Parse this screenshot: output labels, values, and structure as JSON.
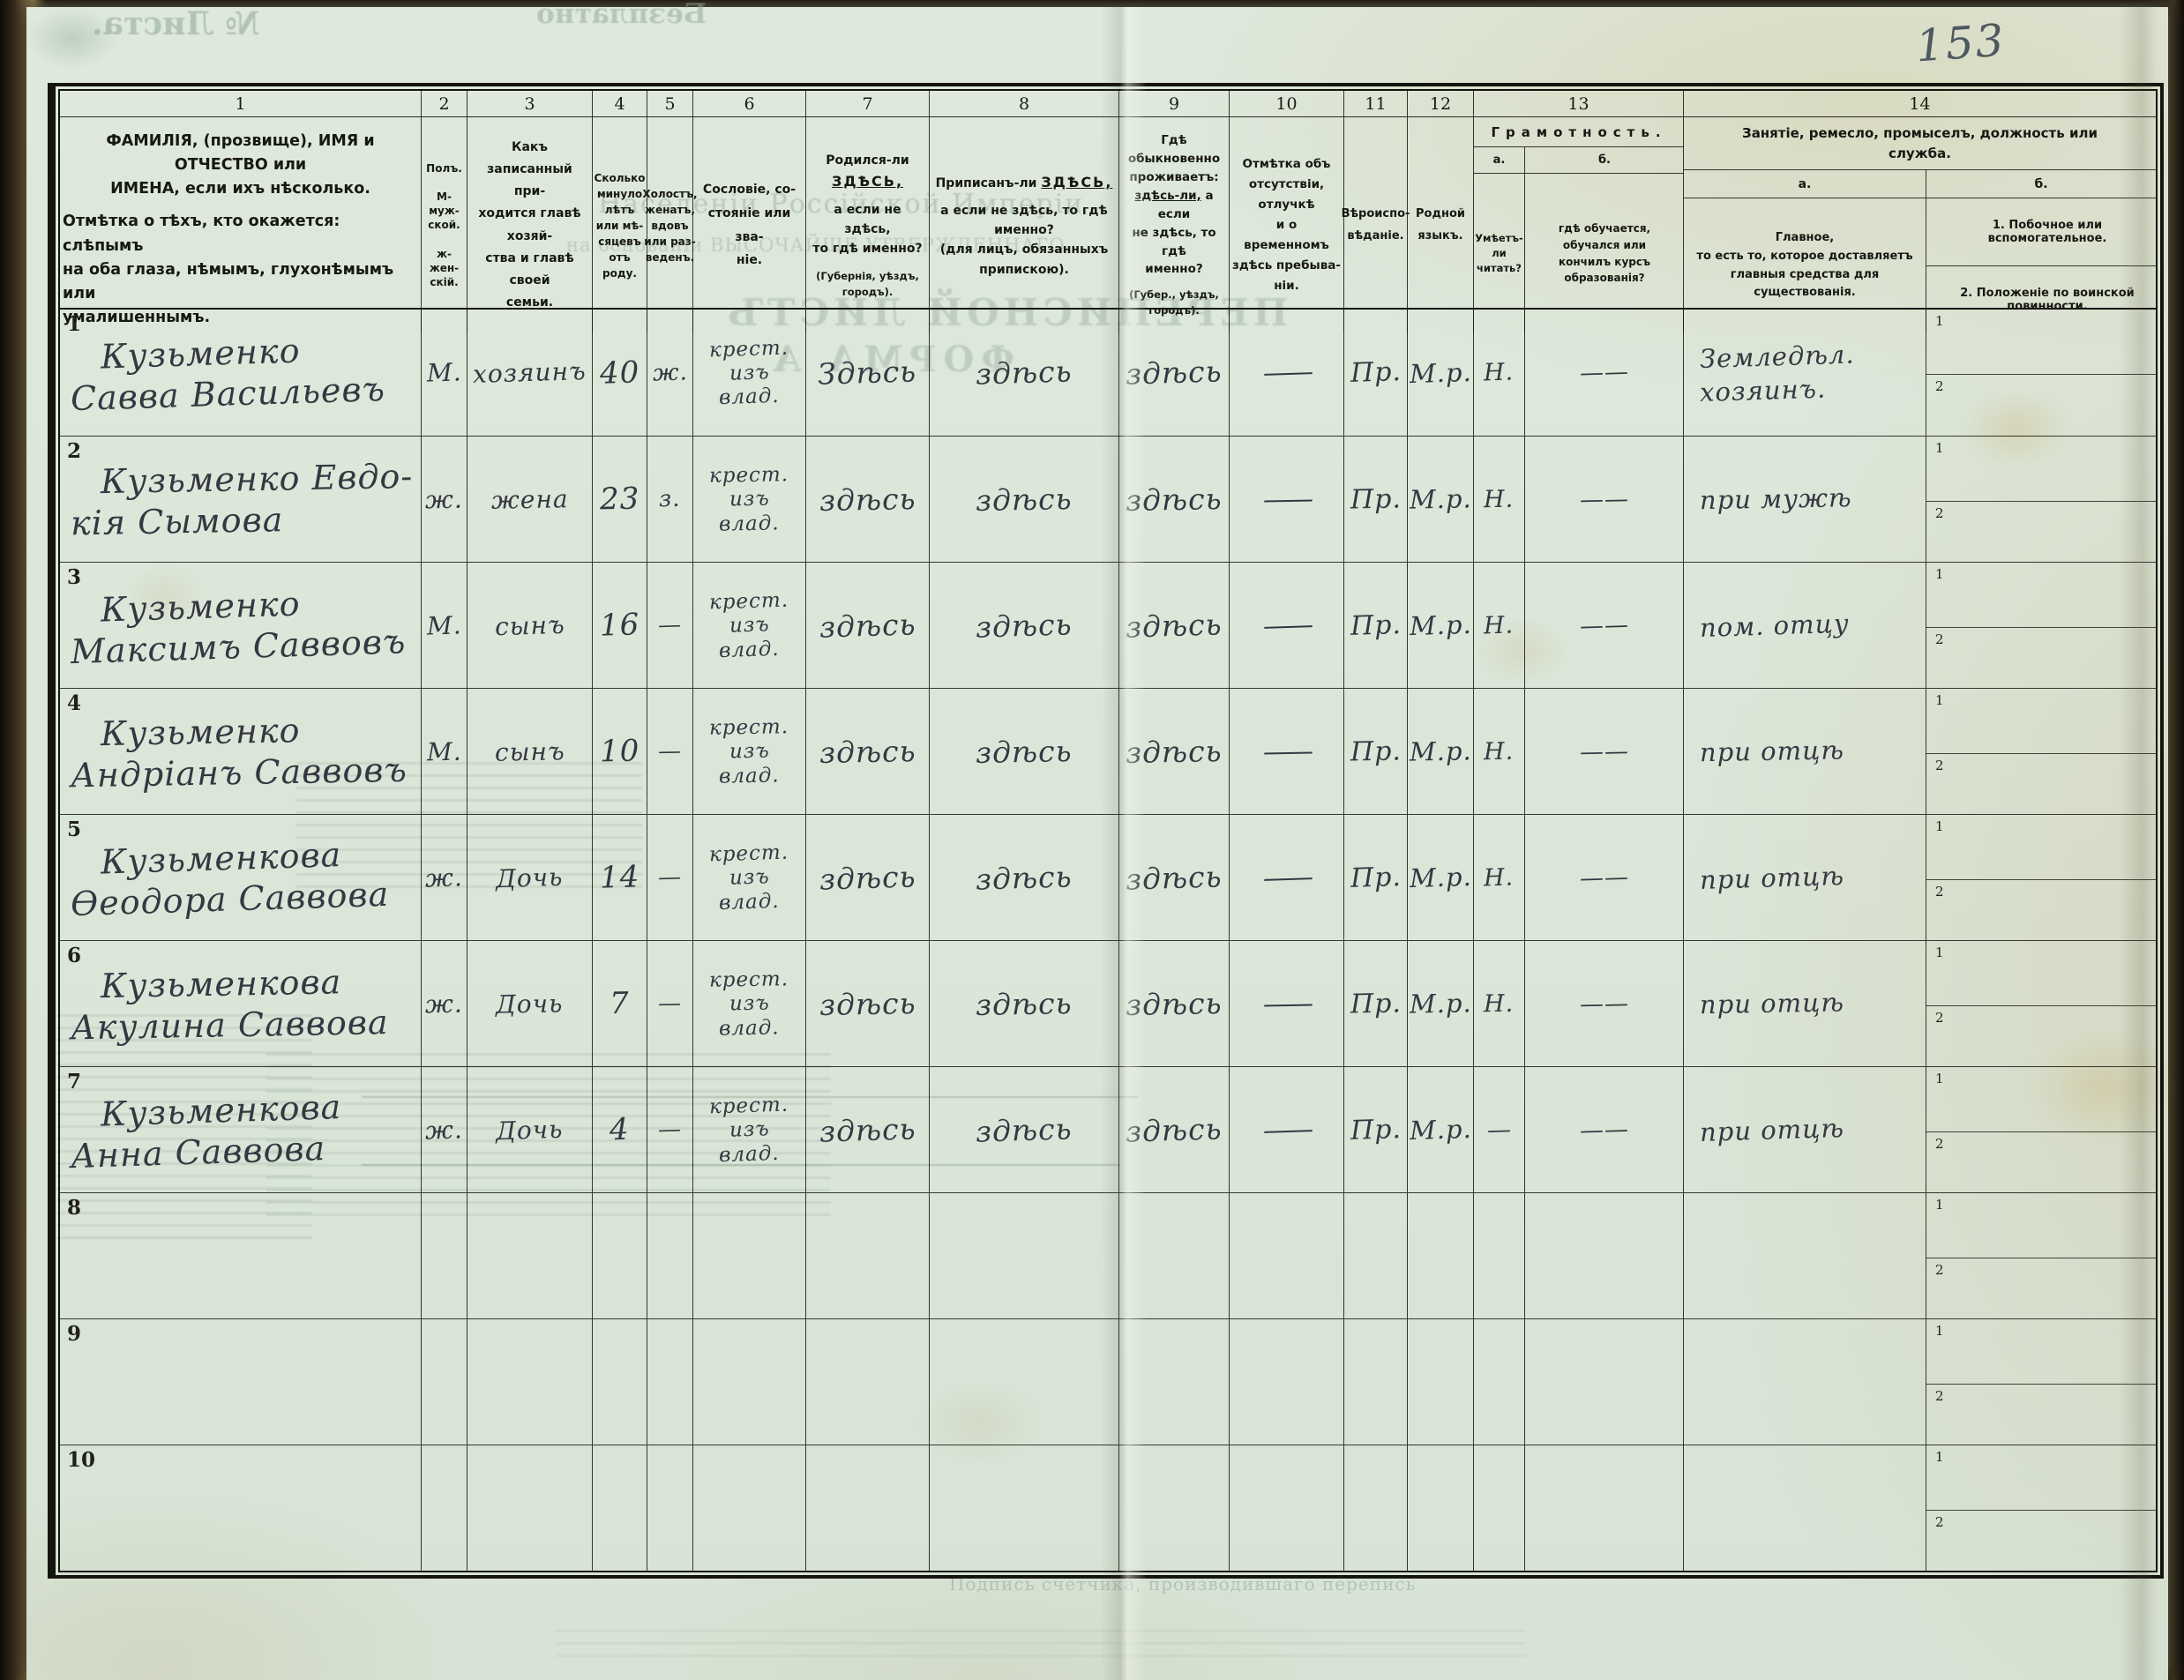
{
  "page": {
    "number": "153"
  },
  "bleedthrough": {
    "free": "Безплатно",
    "sheet_no": "№ Листа.",
    "line1": "Населеніи Россійской Имперіи",
    "line2": "на основаніи ВЫСОЧАЙШЕ УТВЕРЖДЕННАГО",
    "form_title1": "ПЕРЕПИСНОЙ ЛИСТЪ",
    "form_title2": "ФОРМА А",
    "bottom": "Подпись счетчика, производившаго перепись"
  },
  "table": {
    "nums": [
      "1",
      "2",
      "3",
      "4",
      "5",
      "6",
      "7",
      "8",
      "9",
      "10",
      "11",
      "12",
      "13",
      "14"
    ],
    "h1a": "ФАМИЛІЯ, (прозвище), ИМЯ и ОТЧЕСТВО или\nИМЕНА, если ихъ нѣсколько.",
    "h1b": "Отмѣтка о тѣхъ, кто окажется: слѣпымъ\nна оба глаза, нѣмымъ, глухонѣмымъ или\nумалишеннымъ.",
    "h2": "Полъ.\n\nМ-муж-\nской.\n\nж-жен-\nскій.",
    "h3": "Какъ записанный при-\nходится главѣ хозяй-\nства и главѣ своей\nсемьи.",
    "h4": "Сколько\nминуло\nлѣтъ\nили мѣ-\nсяцевъ\nотъ роду.",
    "h5": "Холостъ,\nженатъ,\nвдовъ\nили раз-\nведенъ.",
    "h6": "Сословіе, со-\nстояніе или зва-\nніе.",
    "h7": {
      "a": "Родился-ли",
      "b": "ЗДѢСЬ,",
      "c": "а если не здѣсь,\nто гдѣ именно?",
      "d": "(Губернія, уѣздъ, городъ)."
    },
    "h8": {
      "a": "Приписанъ-ли",
      "b": "ЗДѢСЬ,",
      "c": "а если не здѣсь, то гдѣ\nименно?\n(для лицъ, обязанныхъ\nприпискою).",
      "d": ""
    },
    "h9": {
      "a": "Гдѣ обыкновенно\nпроживаетъ:",
      "b": "здѣсь-ли,",
      "b2": "а если",
      "c": "не здѣсь, то гдѣ\nименно?",
      "d": "(Губер., уѣздъ, городъ)."
    },
    "h10": "Отмѣтка объ\nотсутствіи, отлучкѣ\nи о временномъ\nздѣсь пребыва-\nніи.",
    "h11": "Вѣроиспо-\nвѣданіе.",
    "h12": "Родной\nязыкъ.",
    "h13": {
      "title": "Грамотность.",
      "a": "а.",
      "b": "б.",
      "a_desc": "Умѣетъ-\nли\nчитать?",
      "b_desc": "гдѣ обучается,\nобучался или\nкончилъ курсъ\nобразованія?"
    },
    "h14": {
      "title": "Занятіе, ремесло, промыселъ, должность или служба.",
      "a": "а.",
      "b": "б.",
      "a_desc": "Главное,\nто есть то, которое доставляетъ\nглавныя средства для существованія.",
      "b_desc1": "1.  Побочное или вспомогательное.",
      "b_desc2": "2.  Положеніе по воинской повинности."
    },
    "sub1": "1",
    "sub2": "2",
    "rows": [
      {
        "num": "1",
        "name1": "Кузьменко",
        "name2": "Савва Васильевъ",
        "sex": "М.",
        "relation": "хозяинъ",
        "age": "40",
        "marital": "ж.",
        "est1": "крест.",
        "est2": "изъ",
        "est3": "влад.",
        "born": "Здѣсь",
        "reg": "здѣсь",
        "res": "здѣсь",
        "abs": "——",
        "rel": "Пр.",
        "lang": "М.р.",
        "lit_a": "Н.",
        "lit_b": "——",
        "occ1": "Земледѣл.",
        "occ2": "хозяинъ."
      },
      {
        "num": "2",
        "name1": "Кузьменко Евдо-",
        "name2": "кія Сымова",
        "sex": "ж.",
        "relation": "жена",
        "age": "23",
        "marital": "з.",
        "est1": "крест.",
        "est2": "изъ",
        "est3": "влад.",
        "born": "здѣсь",
        "reg": "здѣсь",
        "res": "здѣсь",
        "abs": "——",
        "rel": "Пр.",
        "lang": "М.р.",
        "lit_a": "Н.",
        "lit_b": "——",
        "occ1": "при мужѣ",
        "occ2": ""
      },
      {
        "num": "3",
        "name1": "Кузьменко",
        "name2": "Максимъ Саввовъ",
        "sex": "М.",
        "relation": "сынъ",
        "age": "16",
        "marital": "—",
        "est1": "крест.",
        "est2": "изъ",
        "est3": "влад.",
        "born": "здѣсь",
        "reg": "здѣсь",
        "res": "здѣсь",
        "abs": "——",
        "rel": "Пр.",
        "lang": "М.р.",
        "lit_a": "Н.",
        "lit_b": "——",
        "occ1": "пом. отцу",
        "occ2": ""
      },
      {
        "num": "4",
        "name1": "Кузьменко",
        "name2": "Андріанъ Саввовъ",
        "sex": "М.",
        "relation": "сынъ",
        "age": "10",
        "marital": "—",
        "est1": "крест.",
        "est2": "изъ",
        "est3": "влад.",
        "born": "здѣсь",
        "reg": "здѣсь",
        "res": "здѣсь",
        "abs": "——",
        "rel": "Пр.",
        "lang": "М.р.",
        "lit_a": "Н.",
        "lit_b": "——",
        "occ1": "при отцѣ",
        "occ2": ""
      },
      {
        "num": "5",
        "name1": "Кузьменкова",
        "name2": "Ѳеодора Саввова",
        "sex": "ж.",
        "relation": "Дочь",
        "age": "14",
        "marital": "—",
        "est1": "крест.",
        "est2": "изъ",
        "est3": "влад.",
        "born": "здѣсь",
        "reg": "здѣсь",
        "res": "здѣсь",
        "abs": "——",
        "rel": "Пр.",
        "lang": "М.р.",
        "lit_a": "Н.",
        "lit_b": "——",
        "occ1": "при отцѣ",
        "occ2": ""
      },
      {
        "num": "6",
        "name1": "Кузьменкова",
        "name2": "Акулина Саввова",
        "sex": "ж.",
        "relation": "Дочь",
        "age": "7",
        "marital": "—",
        "est1": "крест.",
        "est2": "изъ",
        "est3": "влад.",
        "born": "здѣсь",
        "reg": "здѣсь",
        "res": "здѣсь",
        "abs": "——",
        "rel": "Пр.",
        "lang": "М.р.",
        "lit_a": "Н.",
        "lit_b": "——",
        "occ1": "при отцѣ",
        "occ2": ""
      },
      {
        "num": "7",
        "name1": "Кузьменкова",
        "name2": "Анна Саввова",
        "sex": "ж.",
        "relation": "Дочь",
        "age": "4",
        "marital": "—",
        "est1": "крест.",
        "est2": "изъ",
        "est3": "влад.",
        "born": "здѣсь",
        "reg": "здѣсь",
        "res": "здѣсь",
        "abs": "——",
        "rel": "Пр.",
        "lang": "М.р.",
        "lit_a": "—",
        "lit_b": "——",
        "occ1": "при отцѣ",
        "occ2": ""
      },
      {
        "num": "8",
        "name1": "",
        "name2": "",
        "sex": "",
        "relation": "",
        "age": "",
        "marital": "",
        "est1": "",
        "est2": "",
        "est3": "",
        "born": "",
        "reg": "",
        "res": "",
        "abs": "",
        "rel": "",
        "lang": "",
        "lit_a": "",
        "lit_b": "",
        "occ1": "",
        "occ2": ""
      },
      {
        "num": "9",
        "name1": "",
        "name2": "",
        "sex": "",
        "relation": "",
        "age": "",
        "marital": "",
        "est1": "",
        "est2": "",
        "est3": "",
        "born": "",
        "reg": "",
        "res": "",
        "abs": "",
        "rel": "",
        "lang": "",
        "lit_a": "",
        "lit_b": "",
        "occ1": "",
        "occ2": ""
      },
      {
        "num": "10",
        "name1": "",
        "name2": "",
        "sex": "",
        "relation": "",
        "age": "",
        "marital": "",
        "est1": "",
        "est2": "",
        "est3": "",
        "born": "",
        "reg": "",
        "res": "",
        "abs": "",
        "rel": "",
        "lang": "",
        "lit_a": "",
        "lit_b": "",
        "occ1": "",
        "occ2": ""
      }
    ]
  }
}
